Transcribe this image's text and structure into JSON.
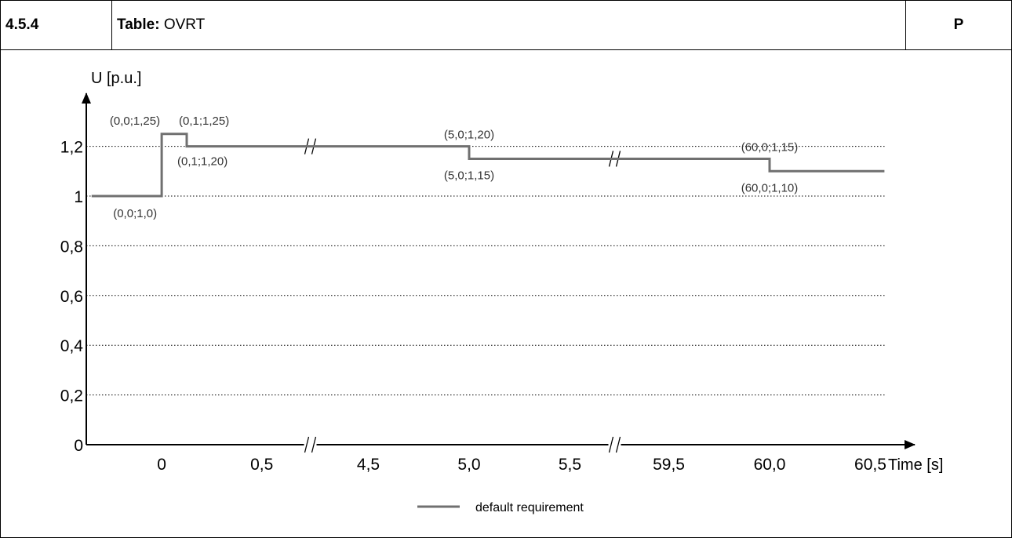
{
  "header": {
    "section": "4.5.4",
    "table_prefix": "Table:",
    "table_name": "OVRT",
    "flag": "P"
  },
  "chart_data": {
    "type": "line",
    "title": "",
    "ylabel": "U [p.u.]",
    "xlabel": "Time [s]",
    "ylim": [
      0,
      1.3
    ],
    "grid": true,
    "y_ticks": [
      {
        "value": 0,
        "label": "0"
      },
      {
        "value": 0.2,
        "label": "0,2"
      },
      {
        "value": 0.4,
        "label": "0,4"
      },
      {
        "value": 0.6,
        "label": "0,6"
      },
      {
        "value": 0.8,
        "label": "0,8"
      },
      {
        "value": 1.0,
        "label": "1"
      },
      {
        "value": 1.2,
        "label": "1,2"
      }
    ],
    "x_ticks": [
      {
        "value": 0,
        "label": "0"
      },
      {
        "value": 0.5,
        "label": "0,5"
      },
      {
        "value": 4.5,
        "label": "4,5"
      },
      {
        "value": 5.0,
        "label": "5,0"
      },
      {
        "value": 5.5,
        "label": "5,5"
      },
      {
        "value": 59.5,
        "label": "59,5"
      },
      {
        "value": 60.0,
        "label": "60,0"
      },
      {
        "value": 60.5,
        "label": "60,5"
      }
    ],
    "axis_breaks": [
      {
        "between": [
          0.5,
          4.5
        ]
      },
      {
        "between": [
          5.5,
          59.5
        ]
      }
    ],
    "series": [
      {
        "name": "default requirement",
        "color": "#707070",
        "points": [
          {
            "x": -0.35,
            "y": 1.0
          },
          {
            "x": 0.0,
            "y": 1.0
          },
          {
            "x": 0.0,
            "y": 1.25
          },
          {
            "x": 0.125,
            "y": 1.25
          },
          {
            "x": 0.125,
            "y": 1.2
          },
          {
            "x": 5.0,
            "y": 1.2
          },
          {
            "x": 5.0,
            "y": 1.15
          },
          {
            "x": 60.0,
            "y": 1.15
          },
          {
            "x": 60.0,
            "y": 1.1
          },
          {
            "x": 60.57,
            "y": 1.1
          }
        ]
      }
    ],
    "annotations": [
      {
        "text": "(0,0;1,25)",
        "x": 0.0,
        "y": 1.25,
        "pos": "above-left"
      },
      {
        "text": "(0,1;1,25)",
        "x": 0.125,
        "y": 1.25,
        "pos": "above-right"
      },
      {
        "text": "(0,1;1,20)",
        "x": 0.125,
        "y": 1.2,
        "pos": "below-right"
      },
      {
        "text": "(0,0;1,0)",
        "x": 0.0,
        "y": 1.0,
        "pos": "below-left"
      },
      {
        "text": "(5,0;1,20)",
        "x": 5.0,
        "y": 1.2,
        "pos": "above"
      },
      {
        "text": "(5,0;1,15)",
        "x": 5.0,
        "y": 1.15,
        "pos": "below"
      },
      {
        "text": "(60,0;1,15)",
        "x": 60.0,
        "y": 1.15,
        "pos": "above"
      },
      {
        "text": "(60,0;1,10)",
        "x": 60.0,
        "y": 1.1,
        "pos": "below"
      }
    ],
    "legend": {
      "position": "bottom-center"
    }
  }
}
